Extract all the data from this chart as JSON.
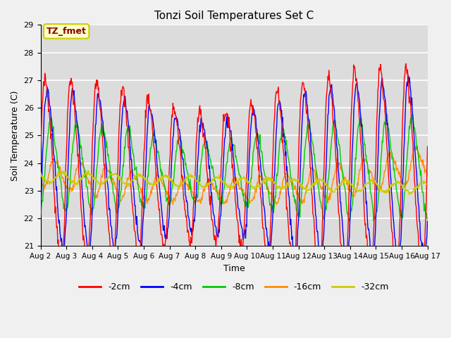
{
  "title": "Tonzi Soil Temperatures Set C",
  "xlabel": "Time",
  "ylabel": "Soil Temperature (C)",
  "ylim": [
    21.0,
    29.0
  ],
  "yticks": [
    21.0,
    22.0,
    23.0,
    24.0,
    25.0,
    26.0,
    27.0,
    28.0,
    29.0
  ],
  "date_labels": [
    "Aug 2",
    "Aug 3",
    "Aug 4",
    "Aug 5",
    "Aug 6",
    "Aug 7",
    "Aug 8",
    "Aug 9",
    "Aug 10",
    "Aug 11",
    "Aug 12",
    "Aug 13",
    "Aug 14",
    "Aug 15",
    "Aug 16",
    "Aug 17"
  ],
  "annotation_text": "TZ_fmet",
  "annotation_color": "#8B0000",
  "annotation_bg": "#FFFFCC",
  "annotation_border": "#CCCC00",
  "colors": {
    "-2cm": "#FF0000",
    "-4cm": "#0000FF",
    "-8cm": "#00CC00",
    "-16cm": "#FF8C00",
    "-32cm": "#CCCC00"
  },
  "background_color": "#DCDCDC",
  "grid_color": "#FFFFFF",
  "n_points": 720,
  "figsize": [
    6.4,
    4.8
  ],
  "dpi": 100
}
